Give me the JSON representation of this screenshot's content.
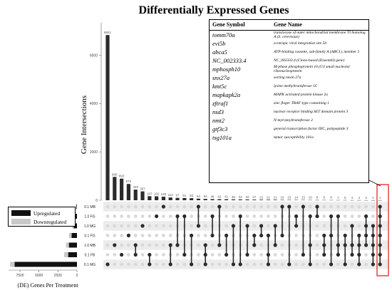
{
  "chart_data": {
    "type": "bar",
    "title": "Differentially Expressed Genes",
    "ylabel": "Gene Intersections",
    "yticks": [
      0,
      2000,
      4000,
      6000
    ],
    "ylim": [
      0,
      7200
    ],
    "intersection_values": [
      6841,
      965,
      893,
      672,
      440,
      367,
      167,
      162,
      146,
      113,
      97,
      91,
      83,
      64,
      54,
      46,
      42,
      41,
      36,
      34,
      32,
      27,
      22,
      22,
      21,
      16,
      15,
      14,
      13,
      10,
      9,
      9,
      8,
      7,
      6,
      4,
      4,
      3,
      1,
      1
    ],
    "intersection_labels": [
      "6841",
      "965",
      "893",
      "672",
      "440",
      "367",
      "167",
      "162",
      "146",
      "113",
      "97",
      "91",
      "83",
      "64",
      "54",
      "46",
      "42",
      "41",
      "36",
      "34",
      "32",
      "27",
      "22",
      "22",
      "21",
      "16",
      "15",
      "14",
      "13",
      "10",
      "9",
      "9",
      "8",
      "7",
      "6",
      "4",
      "4",
      "3",
      "1",
      "1"
    ],
    "sets": [
      "0.1 MG",
      "0.1 FB",
      "1.0 MB",
      "0.1 FG",
      "1.0 MG",
      "1.0 FG",
      "0.1 MB"
    ],
    "set_order_top_to_bottom": [
      "0.1 MB",
      "1.0 FG",
      "1.0 MG",
      "0.1 FG",
      "1.0 MB",
      "0.1 FB",
      "0.1 MG"
    ],
    "set_upregulated": [
      8200,
      1150,
      1050,
      700,
      420,
      180,
      60
    ],
    "set_downregulated": [
      8800,
      1700,
      1450,
      1050,
      650,
      350,
      160
    ],
    "set_xticks": [
      7500,
      5000,
      2500,
      0
    ],
    "set_xlabel": "(DE) Genes Per Treatment",
    "legend": [
      "Upregulated",
      "Downregulated"
    ],
    "colors": {
      "bar": "#2b2b2b",
      "up": "#111111",
      "down": "#c9c9c9",
      "dot_off": "#d9d9d9",
      "dot_on": "#2b2b2b",
      "highlight": "#e8414b",
      "stripe": "#ececec"
    },
    "highlight_intersection": 39,
    "intersection_sets": [
      [
        0
      ],
      [
        2
      ],
      [
        1
      ],
      [
        3
      ],
      [
        1,
        2
      ],
      [
        4
      ],
      [
        0,
        1
      ],
      [
        5
      ],
      [
        6
      ],
      [
        0,
        2
      ],
      [
        2,
        5
      ],
      [
        1,
        5
      ],
      [
        0,
        3
      ],
      [
        4,
        6
      ],
      [
        0,
        1,
        2
      ],
      [
        3,
        5
      ],
      [
        2,
        6
      ],
      [
        1,
        3
      ],
      [
        0,
        4
      ],
      [
        0,
        5
      ],
      [
        1,
        4
      ],
      [
        2,
        3
      ],
      [
        3,
        4
      ],
      [
        0,
        1,
        3
      ],
      [
        2,
        4
      ],
      [
        3,
        6
      ],
      [
        0,
        6
      ],
      [
        4,
        5
      ],
      [
        1,
        6
      ],
      [
        0,
        2,
        5
      ],
      [
        5,
        6
      ],
      [
        1,
        2,
        3
      ],
      [
        0,
        3,
        5
      ],
      [
        1,
        2,
        5
      ],
      [
        0,
        2,
        3
      ],
      [
        1,
        2,
        4
      ],
      [
        0,
        1,
        2,
        3
      ],
      [
        2,
        3,
        4,
        5
      ],
      [
        0,
        1,
        2,
        3,
        4
      ],
      [
        0,
        1,
        2,
        3,
        4,
        5,
        6
      ]
    ]
  },
  "table": {
    "headers": [
      "Gene Symbol",
      "Gene Name"
    ],
    "rows": [
      [
        "tomm70a",
        "translocase of outer mitochondrial membrane 70 homolog A (S. cerevisiae)"
      ],
      [
        "evi5b",
        "ecotropic viral integration site 5b"
      ],
      [
        "abca5",
        "ATP-binding cassette, sub-family A (ABC1), member 5"
      ],
      [
        "NC_002333.4",
        "NC_002333.4 (Clone-based (Ensembl) gene)"
      ],
      [
        "mphosph10",
        "M-phase phosphoprotein 10 (U3 small nucleolar ribonucleoprotein"
      ],
      [
        "snx27a",
        "sorting nexin 27a"
      ],
      [
        "kmt5c",
        "lysine methyltransferase 5C"
      ],
      [
        "mapkapk2a",
        "MAPK activated protein kinase 2a"
      ],
      [
        "zftraf1",
        "zinc finger TRAF-type containing 1"
      ],
      [
        "nsd3",
        "nuclear receptor binding SET domain protein 3"
      ],
      [
        "nmt2",
        "N-myristoyltransferase 2"
      ],
      [
        "gtf3c3",
        "general transcription factor IIIC, polypeptide 3"
      ],
      [
        "tsg101a",
        "tumor susceptibility 101a"
      ]
    ]
  }
}
